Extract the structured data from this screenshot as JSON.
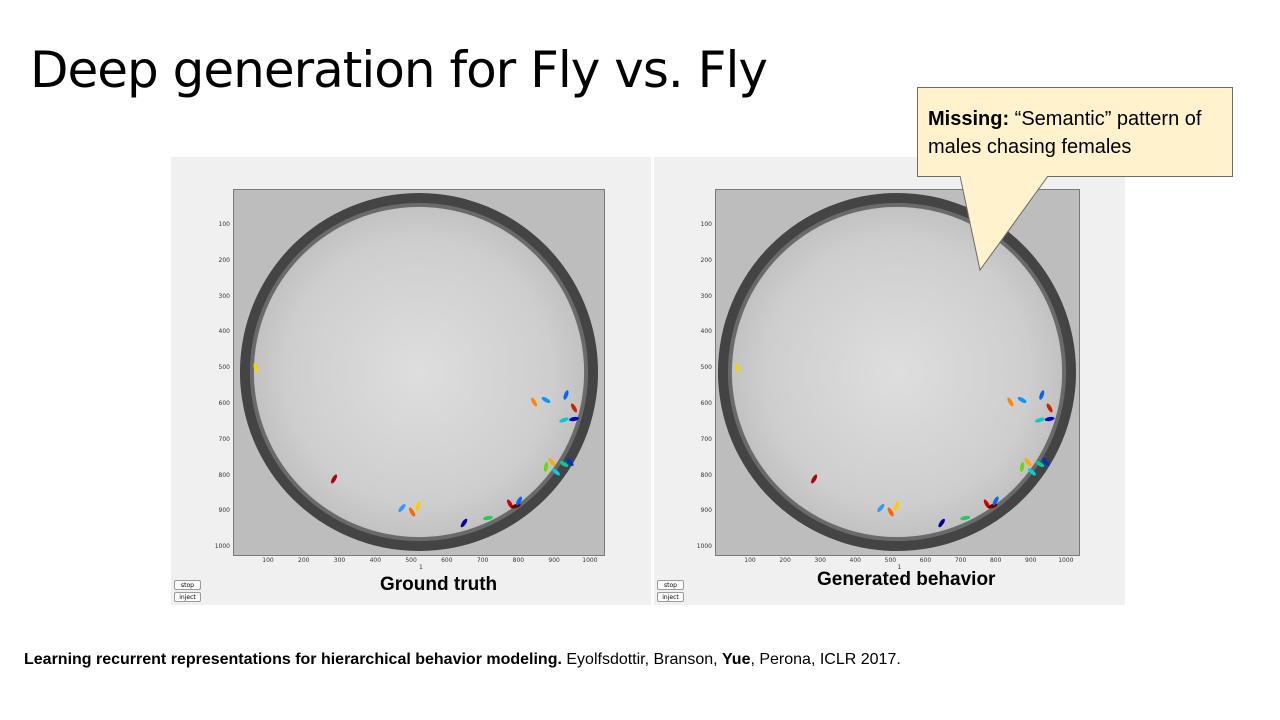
{
  "slide": {
    "title": "Deep generation for Fly vs. Fly"
  },
  "panels": {
    "left": {
      "caption": "Ground truth",
      "stop_label": "stop",
      "inject_label": "inject"
    },
    "right": {
      "caption": "Generated behavior",
      "stop_label": "stop",
      "inject_label": "inject"
    }
  },
  "axes": {
    "y_ticks": [
      "100",
      "200",
      "300",
      "400",
      "500",
      "600",
      "700",
      "800",
      "900",
      "1000"
    ],
    "x_ticks": [
      "100",
      "200",
      "300",
      "400",
      "500",
      "600",
      "700",
      "800",
      "900",
      "1000"
    ],
    "x_label": "1"
  },
  "callout": {
    "bold_prefix": "Missing:",
    "text": " “Semantic” pattern of males chasing females"
  },
  "citation": {
    "bold_title": "Learning recurrent representations for hierarchical behavior modeling.",
    "authors_pre": " Eyolfsdottir, Branson, ",
    "authors_bold": "Yue",
    "authors_post": ", Perona, ICLR 2017."
  },
  "colors": {
    "callout_fill": "#fff2cc",
    "panel_bg": "#f0f0f0",
    "arena_ring": "#3c3c3c",
    "arena_floor": "#cfcfcf"
  }
}
